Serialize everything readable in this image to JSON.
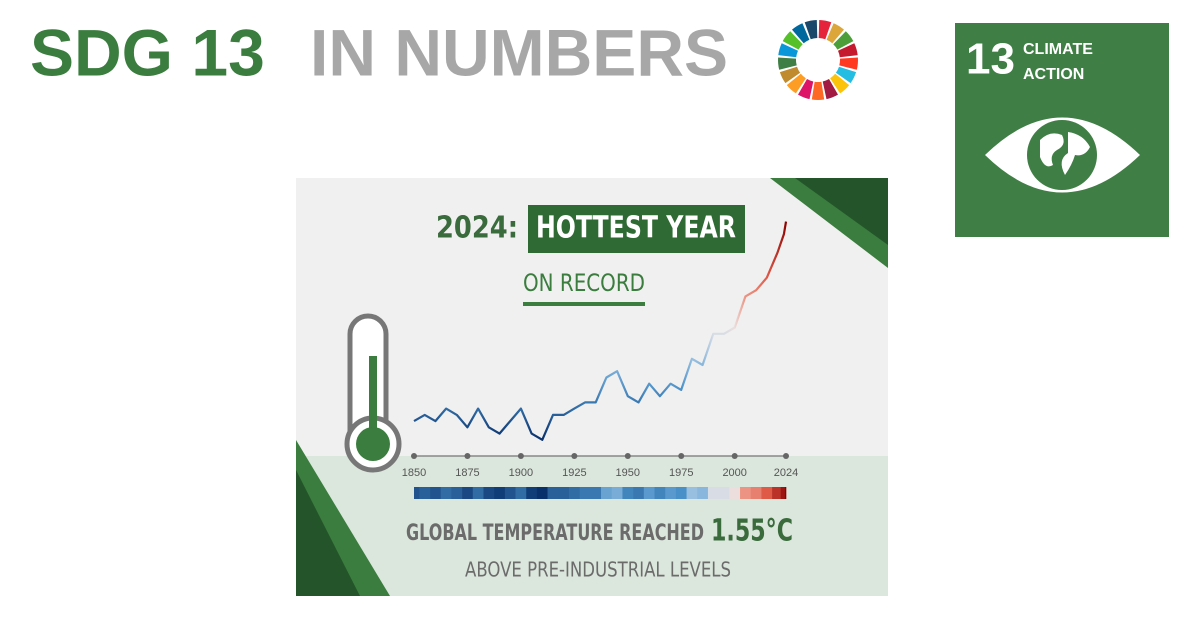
{
  "header": {
    "title_part1": "SDG 13",
    "title_part2": "IN NUMBERS"
  },
  "badge": {
    "number": "13",
    "line1": "CLIMATE",
    "line2": "ACTION"
  },
  "panel": {
    "year": "2024:",
    "highlight": "HOTTEST YEAR",
    "subtitle": "ON RECORD",
    "caption": "GLOBAL TEMPERATURE REACHED",
    "headline_value": "1.55°C",
    "caption2": "ABOVE PRE-INDUSTRIAL LEVELS"
  },
  "chart_data": {
    "type": "line",
    "x": [
      1850,
      1855,
      1860,
      1865,
      1870,
      1875,
      1880,
      1885,
      1890,
      1895,
      1900,
      1905,
      1910,
      1915,
      1920,
      1925,
      1930,
      1935,
      1940,
      1945,
      1950,
      1955,
      1960,
      1965,
      1970,
      1975,
      1980,
      1985,
      1990,
      1995,
      2000,
      2005,
      2010,
      2015,
      2020,
      2023,
      2024
    ],
    "values": [
      -0.05,
      0.0,
      -0.05,
      0.05,
      0.0,
      -0.1,
      0.05,
      -0.1,
      -0.15,
      -0.05,
      0.05,
      -0.15,
      -0.2,
      0.0,
      0.0,
      0.05,
      0.1,
      0.1,
      0.3,
      0.35,
      0.15,
      0.1,
      0.25,
      0.15,
      0.25,
      0.2,
      0.45,
      0.4,
      0.65,
      0.65,
      0.7,
      0.95,
      1.0,
      1.1,
      1.3,
      1.45,
      1.55
    ],
    "xlim": [
      1850,
      2024
    ],
    "xticks": [
      1850,
      1875,
      1900,
      1925,
      1950,
      1975,
      2000,
      2024
    ],
    "ylim": [
      -0.33,
      1.9
    ],
    "stripes": true
  }
}
